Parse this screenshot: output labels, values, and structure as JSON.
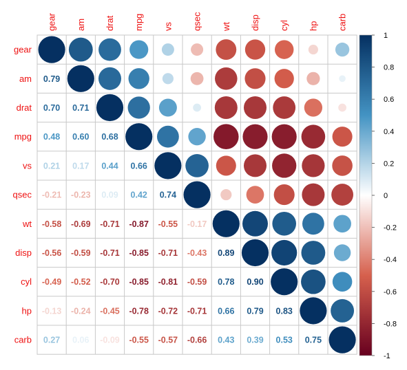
{
  "chart_data": {
    "type": "heatmap",
    "variables": [
      "gear",
      "am",
      "drat",
      "mpg",
      "vs",
      "qsec",
      "wt",
      "disp",
      "cyl",
      "hp",
      "carb"
    ],
    "matrix": [
      [
        1.0,
        0.79,
        0.7,
        0.48,
        0.21,
        -0.21,
        -0.58,
        -0.56,
        -0.49,
        -0.13,
        0.27
      ],
      [
        0.79,
        1.0,
        0.71,
        0.6,
        0.17,
        -0.23,
        -0.69,
        -0.59,
        -0.52,
        -0.24,
        0.06
      ],
      [
        0.7,
        0.71,
        1.0,
        0.68,
        0.44,
        0.09,
        -0.71,
        -0.71,
        -0.7,
        -0.45,
        -0.09
      ],
      [
        0.48,
        0.6,
        0.68,
        1.0,
        0.66,
        0.42,
        -0.87,
        -0.85,
        -0.85,
        -0.78,
        -0.55
      ],
      [
        0.21,
        0.17,
        0.44,
        0.66,
        1.0,
        0.74,
        -0.55,
        -0.71,
        -0.81,
        -0.72,
        -0.57
      ],
      [
        -0.21,
        -0.23,
        0.09,
        0.42,
        0.74,
        1.0,
        -0.17,
        -0.43,
        -0.59,
        -0.71,
        -0.66
      ],
      [
        -0.58,
        -0.69,
        -0.71,
        -0.87,
        -0.55,
        -0.17,
        1.0,
        0.89,
        0.78,
        0.66,
        0.43
      ],
      [
        -0.56,
        -0.59,
        -0.71,
        -0.85,
        -0.71,
        -0.43,
        0.89,
        1.0,
        0.9,
        0.79,
        0.39
      ],
      [
        -0.49,
        -0.52,
        -0.7,
        -0.85,
        -0.81,
        -0.59,
        0.78,
        0.9,
        1.0,
        0.83,
        0.53
      ],
      [
        -0.13,
        -0.24,
        -0.45,
        -0.78,
        -0.72,
        -0.71,
        0.66,
        0.79,
        0.83,
        1.0,
        0.75
      ],
      [
        0.27,
        0.06,
        -0.09,
        -0.55,
        -0.57,
        -0.66,
        0.43,
        0.39,
        0.53,
        0.75,
        1.0
      ]
    ],
    "lower_labels": [
      [],
      [
        "0.79"
      ],
      [
        "0.70",
        "0.71"
      ],
      [
        "0.48",
        "0.60",
        "0.68"
      ],
      [
        "0.21",
        "0.17",
        "0.44",
        "0.66"
      ],
      [
        "-0.21",
        "-0.23",
        "0.09",
        "0.42",
        "0.74"
      ],
      [
        "-0.58",
        "-0.69",
        "-0.71",
        "-0.87",
        "-0.55",
        "-0.17"
      ],
      [
        "-0.56",
        "-0.59",
        "-0.71",
        "-0.85",
        "-0.71",
        "-0.43",
        "0.89"
      ],
      [
        "-0.49",
        "-0.52",
        "-0.70",
        "-0.85",
        "-0.81",
        "-0.59",
        "0.78",
        "0.90"
      ],
      [
        "-0.13",
        "-0.24",
        "-0.45",
        "-0.78",
        "-0.72",
        "-0.71",
        "0.66",
        "0.79",
        "0.83"
      ],
      [
        "0.27",
        "0.06",
        "-0.09",
        "-0.55",
        "-0.57",
        "-0.66",
        "0.43",
        "0.39",
        "0.53",
        "0.75"
      ]
    ],
    "upper_glyph": "circle",
    "lower_glyph": "number",
    "colorbar": {
      "range": [
        -1,
        1
      ],
      "ticks": [
        "1",
        "0.8",
        "0.6",
        "0.4",
        "0.2",
        "0",
        "-0.2",
        "-0.4",
        "-0.6",
        "-0.8",
        "-1"
      ]
    },
    "colors": {
      "negative_end": "#67001f",
      "mid_negative": "#d6604d",
      "neutral": "#ffffff",
      "mid_positive": "#4393c3",
      "positive_end": "#053061",
      "label_color": "#ee1111",
      "grid_color": "#c8c8c8"
    }
  }
}
